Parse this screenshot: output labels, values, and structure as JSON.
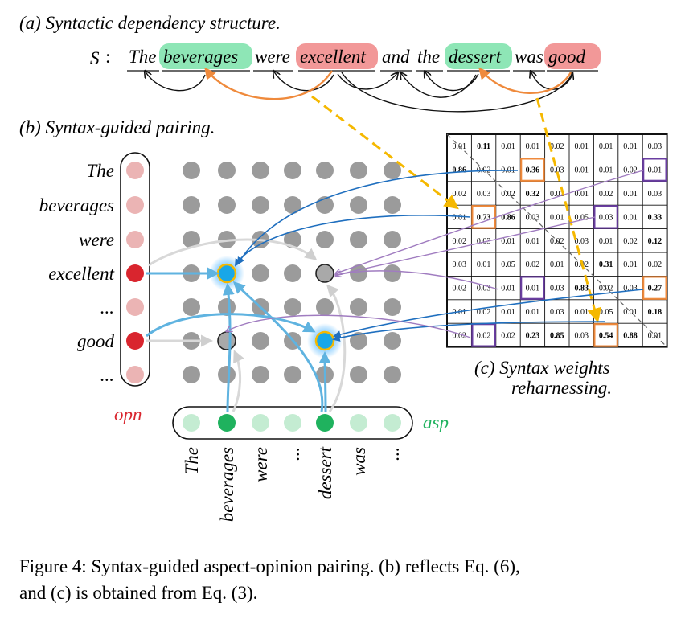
{
  "panel_a": {
    "title": "(a) Syntactic dependency structure.",
    "sentence_symbol": "S",
    "sentence_colon": ":",
    "tokens": [
      {
        "text": "The",
        "role": "none"
      },
      {
        "text": "beverages",
        "role": "aspect"
      },
      {
        "text": "were",
        "role": "none"
      },
      {
        "text": "excellent",
        "role": "opinion"
      },
      {
        "text": "and",
        "role": "none"
      },
      {
        "text": "the",
        "role": "none"
      },
      {
        "text": "dessert",
        "role": "aspect"
      },
      {
        "text": "was",
        "role": "none"
      },
      {
        "text": "good",
        "role": "opinion"
      }
    ]
  },
  "panel_b": {
    "title": "(b) Syntax-guided pairing.",
    "row_labels": [
      "The",
      "beverages",
      "were",
      "excellent",
      "...",
      "good",
      "..."
    ],
    "col_labels": [
      "The",
      "beverages",
      "were",
      "...",
      "dessert",
      "was",
      "..."
    ],
    "opn_label": "opn",
    "asp_label": "asp",
    "opn_active_rows": [
      3,
      5
    ],
    "asp_active_cols": [
      1,
      4
    ]
  },
  "panel_c": {
    "title_line1": "(c) Syntax weights",
    "title_line2": "reharnessing.",
    "matrix": [
      [
        "0.01",
        "0.11",
        "0.01",
        "0.01",
        "0.02",
        "0.01",
        "0.01",
        "0.01",
        "0.03"
      ],
      [
        "0.86",
        "0.02",
        "0.01",
        "0.36",
        "0.03",
        "0.01",
        "0.01",
        "0.02",
        "0.01"
      ],
      [
        "0.02",
        "0.03",
        "0.02",
        "0.32",
        "0.02",
        "0.01",
        "0.02",
        "0.01",
        "0.03"
      ],
      [
        "0.01",
        "0.73",
        "0.86",
        "0.03",
        "0.01",
        "0.05",
        "0.03",
        "0.01",
        "0.33"
      ],
      [
        "0.02",
        "0.03",
        "0.01",
        "0.01",
        "0.02",
        "0.03",
        "0.01",
        "0.02",
        "0.12"
      ],
      [
        "0.03",
        "0.01",
        "0.05",
        "0.02",
        "0.01",
        "0.02",
        "0.31",
        "0.01",
        "0.02"
      ],
      [
        "0.02",
        "0.03",
        "0.01",
        "0.01",
        "0.03",
        "0.83",
        "0.02",
        "0.03",
        "0.27"
      ],
      [
        "0.01",
        "0.02",
        "0.01",
        "0.01",
        "0.03",
        "0.01",
        "0.05",
        "0.01",
        "0.18"
      ],
      [
        "0.02",
        "0.02",
        "0.02",
        "0.23",
        "0.85",
        "0.03",
        "0.54",
        "0.88",
        "0.01"
      ]
    ],
    "bold_cells": [
      [
        0,
        1
      ],
      [
        1,
        0
      ],
      [
        1,
        3
      ],
      [
        2,
        3
      ],
      [
        3,
        1
      ],
      [
        3,
        2
      ],
      [
        3,
        8
      ],
      [
        4,
        8
      ],
      [
        5,
        6
      ],
      [
        6,
        5
      ],
      [
        6,
        8
      ],
      [
        7,
        8
      ],
      [
        8,
        3
      ],
      [
        8,
        4
      ],
      [
        8,
        6
      ],
      [
        8,
        7
      ]
    ],
    "orange_boxes": [
      [
        1,
        3
      ],
      [
        3,
        1
      ],
      [
        6,
        8
      ],
      [
        8,
        6
      ]
    ],
    "purple_boxes": [
      [
        1,
        8
      ],
      [
        3,
        6
      ],
      [
        6,
        3
      ],
      [
        8,
        1
      ]
    ]
  },
  "caption": {
    "line1": "Figure 4: Syntax-guided aspect-opinion pairing. (b) reflects Eq. (6),",
    "line2": "and (c) is obtained from Eq. (3)."
  },
  "colors": {
    "aspect": "#8ee6b6",
    "opinion": "#f29898",
    "orange": "#ef8a3c",
    "dashed_yellow": "#f5b800",
    "blue": "#1f6fbf",
    "purple": "#a07cc0",
    "light_blue": "#5fb3e0",
    "gray_dot": "#9b9b9b",
    "opn_red": "#d9252e",
    "asp_green": "#1fb25e"
  }
}
